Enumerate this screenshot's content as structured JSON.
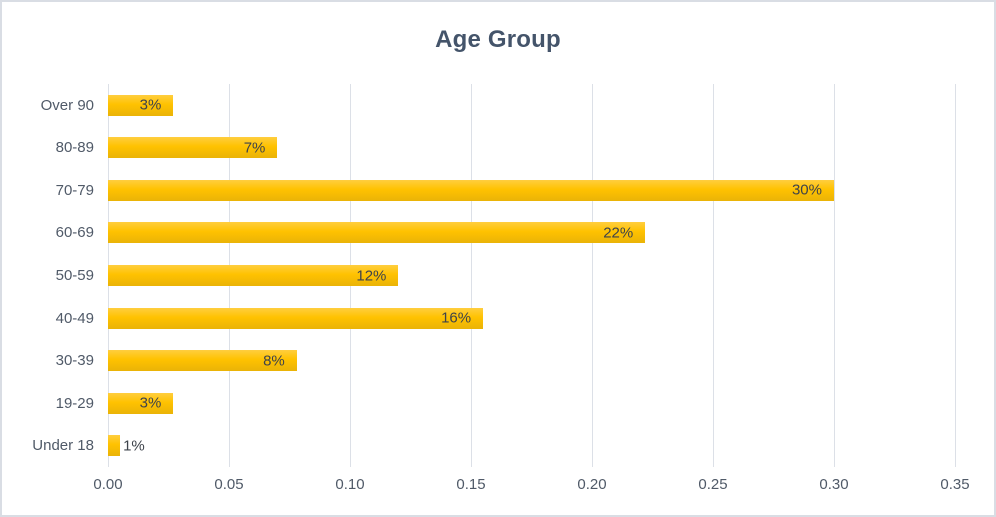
{
  "title": "Age Group",
  "colors": {
    "bar_top": "#FFCE3F",
    "bar_mid": "#FFC200",
    "bar_bottom": "#EAB307",
    "title_text": "#44546A",
    "axis_text": "#505A68",
    "data_label_text": "#3E434B",
    "gridline": "#DCE0E7",
    "frame_border": "#D9DDE4",
    "background": "#FFFFFF"
  },
  "chart_data": {
    "type": "bar",
    "orientation": "horizontal",
    "title": "Age Group",
    "categories": [
      "Over 90",
      "80-89",
      "70-79",
      "60-69",
      "50-59",
      "40-49",
      "30-39",
      "19-29",
      "Under 18"
    ],
    "values": [
      0.027,
      0.07,
      0.3,
      0.222,
      0.12,
      0.155,
      0.078,
      0.027,
      0.005
    ],
    "data_labels": [
      "3%",
      "7%",
      "30%",
      "22%",
      "12%",
      "16%",
      "8%",
      "3%",
      "1%"
    ],
    "xticks": [
      0,
      0.05,
      0.1,
      0.15,
      0.2,
      0.25,
      0.3,
      0.35
    ],
    "xtick_labels": [
      "0.00",
      "0.05",
      "0.10",
      "0.15",
      "0.20",
      "0.25",
      "0.30",
      "0.35"
    ],
    "xlim": [
      0,
      0.35
    ],
    "xlabel": "",
    "ylabel": "",
    "grid": "vertical",
    "legend": false
  }
}
